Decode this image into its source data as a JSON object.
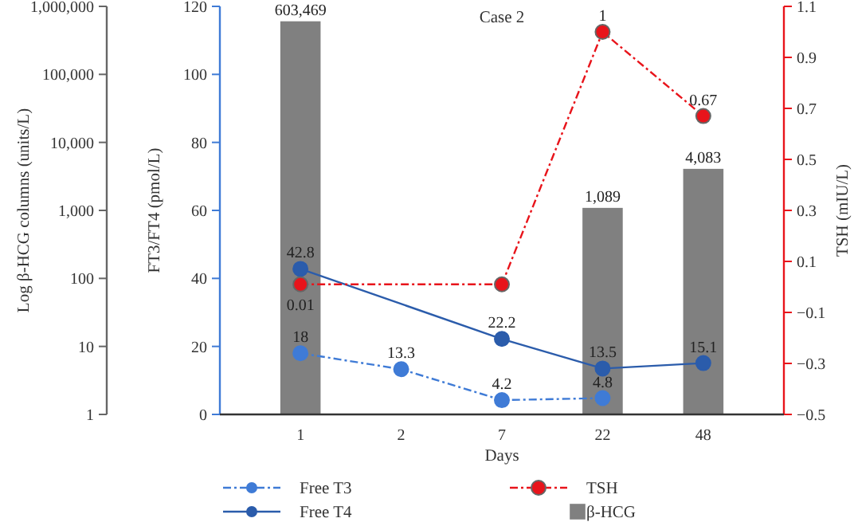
{
  "chart_data": {
    "type": "bar",
    "title": "Case 2",
    "xlabel": "Days",
    "ylabel": "FT3/FT4 (pmol/L)",
    "y2label": "TSH (mIU/L)",
    "y3label": "Log β-HCG columns (units/L)",
    "categories": [
      "1",
      "2",
      "7",
      "22",
      "48"
    ],
    "series": [
      {
        "name": "Free T3",
        "type": "line",
        "color": "#3f7bd6",
        "line_style": "dashed",
        "marker": "circle",
        "values": [
          18,
          13.3,
          4.2,
          4.8,
          null
        ],
        "value_labels": [
          "18",
          "13.3",
          "4.2",
          "4.8",
          null
        ]
      },
      {
        "name": "Free T4",
        "type": "line",
        "color": "#2b5cab",
        "line_style": "solid",
        "marker": "circle",
        "values": [
          42.8,
          null,
          22.2,
          13.5,
          15.1
        ],
        "value_labels": [
          "42.8",
          null,
          "22.2",
          "13.5",
          "15.1"
        ]
      },
      {
        "name": "TSH",
        "type": "line",
        "axis": "y2",
        "color": "#e8141b",
        "line_style": "dashed",
        "marker": "circle",
        "values": [
          0.01,
          null,
          0.01,
          1,
          0.67
        ],
        "value_labels": [
          "0.01",
          null,
          null,
          "1",
          "0.67"
        ]
      },
      {
        "name": "β-HCG",
        "axis": "y3",
        "color": "#808080",
        "values": [
          603469,
          null,
          null,
          1089,
          4083
        ],
        "value_labels": [
          "603,469",
          null,
          null,
          "1,089",
          "4,083"
        ]
      }
    ],
    "ylim": [
      0,
      120
    ],
    "yticks": [
      0,
      20,
      40,
      60,
      80,
      100,
      120
    ],
    "y2lim": [
      -0.5,
      1.1
    ],
    "y2ticks": [
      -0.5,
      -0.3,
      -0.1,
      0.1,
      0.3,
      0.5,
      0.7,
      0.9,
      1.1
    ],
    "y3lim": [
      1,
      1000000
    ],
    "y3ticks": [
      1,
      10,
      100,
      {
        "value": 1000,
        "label": "1,000"
      },
      {
        "value": 10000,
        "label": "10,000"
      },
      {
        "value": 100000,
        "label": "100,000"
      },
      {
        "value": 1000000,
        "label": "1,000,000"
      }
    ],
    "log": "y3",
    "grid": false,
    "legend": "bottom"
  }
}
